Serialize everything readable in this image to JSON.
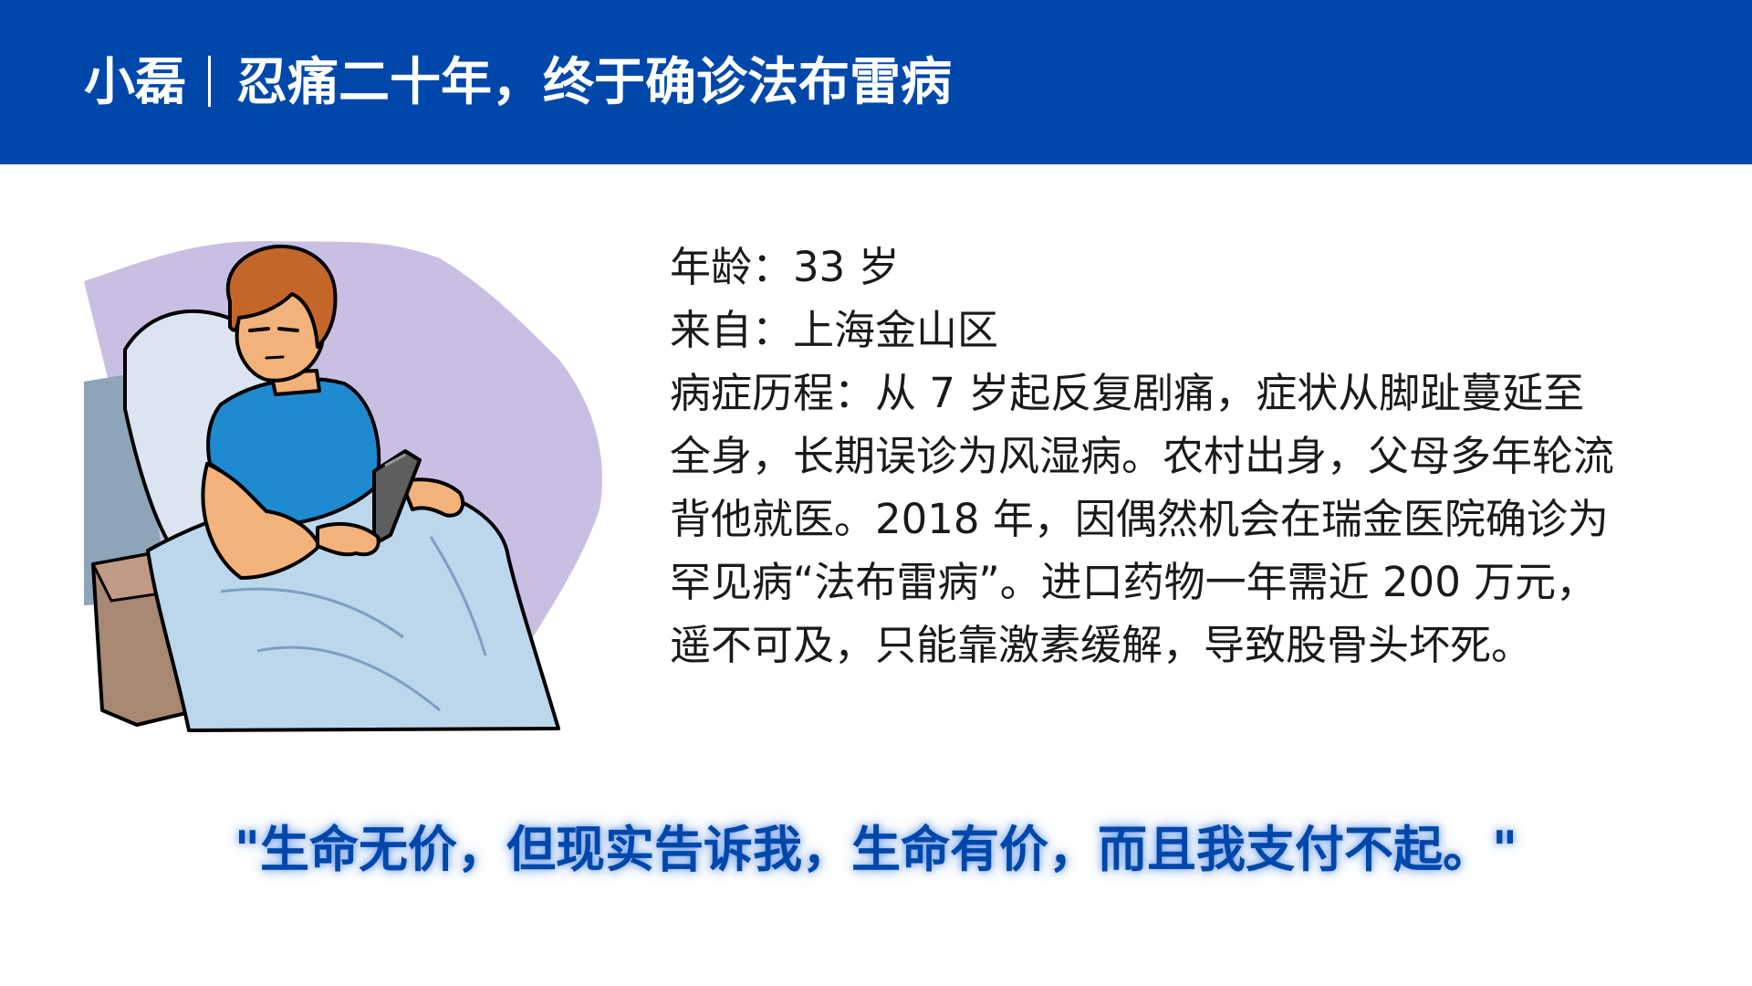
{
  "header": {
    "name": "小磊",
    "headline": "忍痛二十年，终于确诊法布雷病"
  },
  "profile": {
    "age_label": "年龄：",
    "age_value": "33 岁",
    "origin_label": "来自：",
    "origin_value": "上海金山区",
    "history_label": "病症历程：",
    "history_text": "从 7 岁起反复剧痛，症状从脚趾蔓延至全身，长期误诊为风湿病。农村出身，父母多年轮流背他就医。2018 年，因偶然机会在瑞金医院确诊为罕见病“法布雷病”。进口药物一年需近 200 万元，遥不可及，只能靠激素缓解，导致股骨头坏死。"
  },
  "quote": "\"生命无价，但现实告诉我，生命有价，而且我支付不起。\"",
  "colors": {
    "header_bg": "#0047AB",
    "quote_text": "#0047AB",
    "illustration_backdrop": "#C9BFE3",
    "gown": "#1E8AD0",
    "blanket": "#BCD6EC",
    "skin": "#F2B27A",
    "hair": "#C4662A"
  },
  "icons": {
    "illustration": "patient-in-hospital-bed-illustration"
  }
}
